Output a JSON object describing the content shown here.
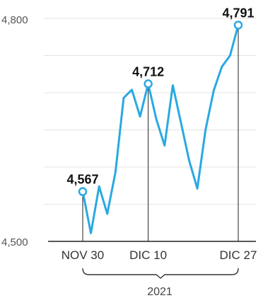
{
  "chart_data": {
    "type": "line",
    "title": "",
    "xlabel": "2021",
    "ylabel": "",
    "ylim": [
      4500,
      4800
    ],
    "y_ticks": [
      4500,
      4800
    ],
    "y_tick_labels": [
      "4,500",
      "4,800"
    ],
    "grid": true,
    "colors": {
      "line": "#29a9e1",
      "grid": "#e3e3e3",
      "axis": "#222222",
      "marker_fill": "#ffffff"
    },
    "x_tick_labels": [
      {
        "label": "NOV 30",
        "index": 0
      },
      {
        "label": "DIC 10",
        "index": 8
      },
      {
        "label": "DIC 27",
        "index": 19
      }
    ],
    "series": [
      {
        "values": [
          4567,
          4511,
          4574,
          4537,
          4593,
          4693,
          4704,
          4668,
          4712,
          4664,
          4629,
          4710,
          4660,
          4609,
          4571,
          4650,
          4703,
          4735,
          4750,
          4791
        ]
      }
    ],
    "highlights": [
      {
        "index": 0,
        "label": "4,567"
      },
      {
        "index": 8,
        "label": "4,712"
      },
      {
        "index": 19,
        "label": "4,791"
      }
    ]
  }
}
